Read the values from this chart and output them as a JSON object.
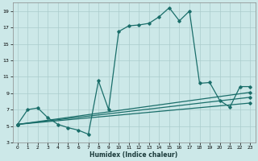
{
  "xlabel": "Humidex (Indice chaleur)",
  "bg_color": "#cce8e8",
  "line_color": "#1a6e6a",
  "grid_color": "#aacccc",
  "xlim": [
    -0.5,
    23.5
  ],
  "ylim": [
    3,
    20
  ],
  "yticks": [
    3,
    5,
    7,
    9,
    11,
    13,
    15,
    17,
    19
  ],
  "xticks": [
    0,
    1,
    2,
    3,
    4,
    5,
    6,
    7,
    8,
    9,
    10,
    11,
    12,
    13,
    14,
    15,
    16,
    17,
    18,
    19,
    20,
    21,
    22,
    23
  ],
  "line1_x": [
    0,
    1,
    2,
    3,
    4,
    5,
    6,
    7,
    8,
    9,
    10,
    11,
    12,
    13,
    14,
    15,
    16,
    17,
    18,
    19,
    20,
    21,
    22,
    23
  ],
  "line1_y": [
    5.2,
    7.0,
    7.2,
    6.0,
    5.2,
    4.8,
    4.5,
    4.0,
    10.5,
    7.0,
    16.5,
    17.2,
    17.3,
    17.5,
    18.3,
    19.4,
    17.8,
    19.0,
    10.2,
    10.3,
    8.1,
    7.3,
    9.8,
    9.8
  ],
  "line2_x": [
    0,
    23
  ],
  "line2_y": [
    5.2,
    9.1
  ],
  "line3_x": [
    0,
    23
  ],
  "line3_y": [
    5.2,
    8.5
  ],
  "line4_x": [
    0,
    23
  ],
  "line4_y": [
    5.2,
    7.8
  ]
}
